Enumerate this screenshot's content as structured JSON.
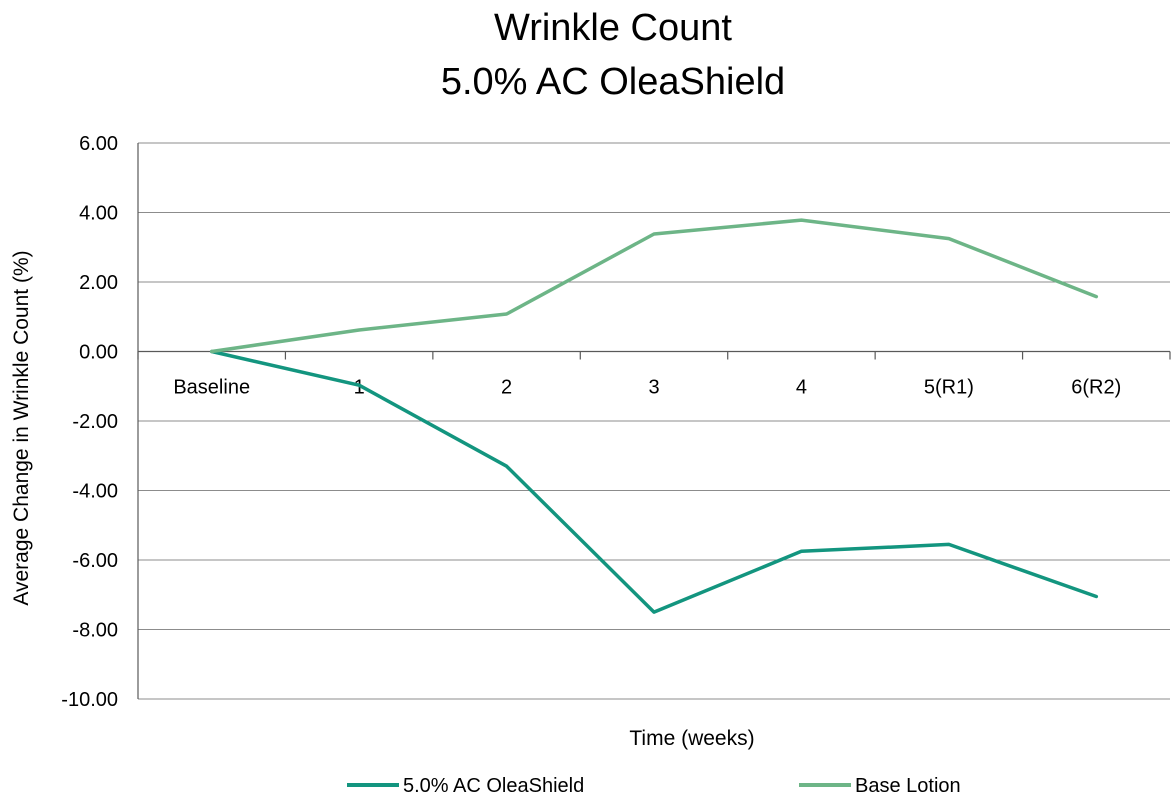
{
  "chart_data": {
    "type": "line",
    "title_line1": "Wrinkle Count",
    "title_line2": "5.0% AC OleaShield",
    "xlabel": "Time (weeks)",
    "ylabel": "Average Change in Wrinkle Count (%)",
    "categories": [
      "Baseline",
      "1",
      "2",
      "3",
      "4",
      "5(R1)",
      "6(R2)"
    ],
    "ylim": [
      -10,
      6
    ],
    "yticks": [
      6,
      4,
      2,
      0,
      -2,
      -4,
      -6,
      -8,
      -10
    ],
    "ytick_labels": [
      "6.00",
      "4.00",
      "2.00",
      "0.00",
      "-2.00",
      "-4.00",
      "-6.00",
      "-8.00",
      "-10.00"
    ],
    "grid": true,
    "legend_position": "bottom",
    "series": [
      {
        "name": "5.0% AC OleaShield",
        "color": "#13957f",
        "values": [
          0,
          -0.97,
          -3.3,
          -7.5,
          -5.75,
          -5.55,
          -7.05
        ]
      },
      {
        "name": "Base Lotion",
        "color": "#6db587",
        "values": [
          0,
          0.62,
          1.08,
          3.38,
          3.78,
          3.25,
          1.58
        ]
      }
    ]
  }
}
